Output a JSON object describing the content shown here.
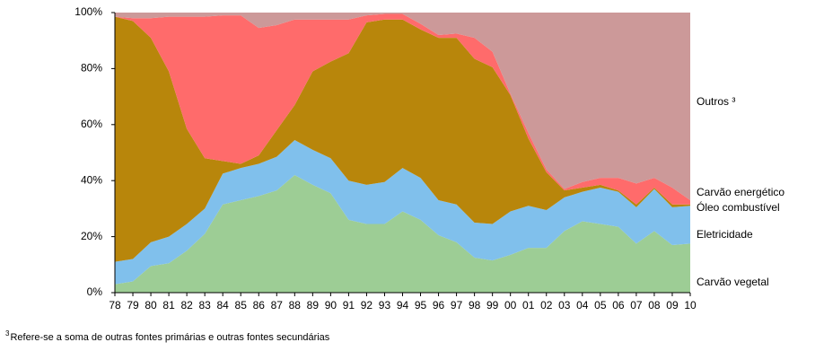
{
  "chart_data": {
    "type": "stacked_area_100",
    "categories": [
      "78",
      "79",
      "80",
      "81",
      "82",
      "83",
      "84",
      "85",
      "86",
      "87",
      "88",
      "89",
      "90",
      "91",
      "92",
      "93",
      "94",
      "95",
      "96",
      "97",
      "98",
      "99",
      "00",
      "01",
      "02",
      "03",
      "04",
      "05",
      "06",
      "07",
      "08",
      "09",
      "10"
    ],
    "series": [
      {
        "name": "Carvão vegetal",
        "color": "#9dcd95",
        "values": [
          3,
          4,
          9.5,
          10.5,
          15,
          21,
          31.5,
          33,
          34.5,
          36.5,
          42,
          38.5,
          35.5,
          26,
          24.5,
          24.5,
          29,
          26,
          20.5,
          18,
          12.5,
          11.5,
          13.5,
          16,
          16,
          22,
          25.5,
          24.5,
          23.5,
          17.5,
          22,
          17,
          17.5
        ]
      },
      {
        "name": "Eletricidade",
        "color": "#80c0ec",
        "values": [
          8,
          8,
          8.5,
          9.5,
          9.5,
          9,
          11,
          11.5,
          11.5,
          12,
          12.5,
          12.5,
          12.5,
          14,
          14,
          15,
          15.5,
          15,
          12.5,
          13.5,
          12.5,
          13,
          15.5,
          15,
          13.5,
          12,
          10.5,
          13,
          12.5,
          13,
          15,
          13.5,
          13.5
        ]
      },
      {
        "name": "Óleo combustível",
        "color": "#b8860b",
        "values": [
          87.5,
          85,
          73,
          59,
          34,
          18,
          4.5,
          1.5,
          3,
          9.5,
          12.5,
          28,
          34.5,
          45.5,
          58,
          58,
          53,
          53,
          58,
          59.5,
          58.5,
          56,
          41.5,
          24,
          13.5,
          2.5,
          1.5,
          1,
          0.5,
          1,
          0.5,
          1,
          0.5
        ]
      },
      {
        "name": "Carvão energético",
        "color": "#ff6b6b",
        "values": [
          0,
          1,
          7,
          19.5,
          40,
          50.5,
          52,
          53,
          45.5,
          37.5,
          30.5,
          18.5,
          15,
          12,
          2.5,
          2,
          2,
          2,
          1,
          1.5,
          7.5,
          5.5,
          0.5,
          2,
          1,
          0.5,
          2,
          2.5,
          4.5,
          7.5,
          3.5,
          6,
          1.5
        ]
      },
      {
        "name": "Outros ³",
        "color": "#cc9999",
        "values": [
          1.5,
          2,
          2,
          1.5,
          1.5,
          1.5,
          1,
          1,
          5.5,
          4.5,
          2.5,
          2.5,
          2.5,
          2.5,
          1,
          0.5,
          0.5,
          4,
          8,
          7.5,
          9,
          14,
          29,
          43,
          56,
          63,
          60.5,
          59,
          59,
          61,
          59,
          62.5,
          67
        ]
      }
    ],
    "ylim": [
      0,
      100
    ],
    "yticks": [
      {
        "value": 0,
        "label": "0%"
      },
      {
        "value": 20,
        "label": "20%"
      },
      {
        "value": 40,
        "label": "40%"
      },
      {
        "value": 60,
        "label": "60%"
      },
      {
        "value": 80,
        "label": "80%"
      },
      {
        "value": 100,
        "label": "100%"
      }
    ],
    "footnote": {
      "marker": "3",
      "text": "Refere-se a soma de outras fontes primárias e outras fontes secundárias"
    }
  }
}
